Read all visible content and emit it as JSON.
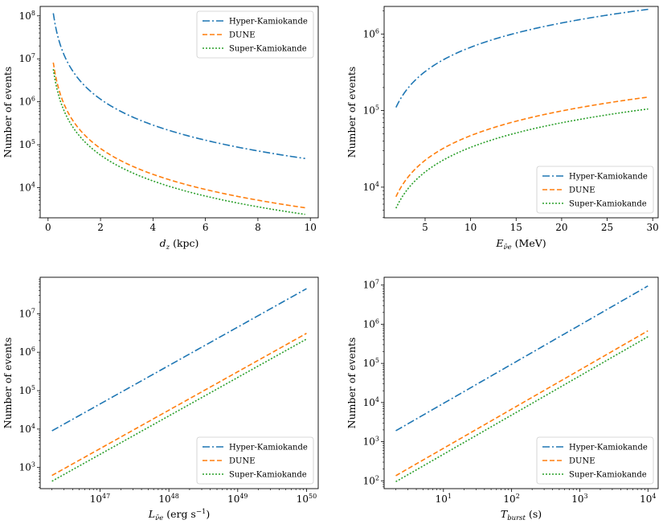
{
  "series_styles": [
    {
      "name": "Hyper-Kamiokande",
      "color": "#1f77b4",
      "dash": "9,3,2,3"
    },
    {
      "name": "DUNE",
      "color": "#ff7f0e",
      "dash": "6,3"
    },
    {
      "name": "Super-Kamiokande",
      "color": "#2ca02c",
      "dash": "2,2"
    }
  ],
  "chart_data": [
    {
      "type": "line",
      "xscale": "linear",
      "yscale": "log",
      "xlabel_main": "d",
      "xlabel_sub": "z",
      "xlabel_tail": " (kpc)",
      "ylabel": "Number of events",
      "xlim": [
        -0.3,
        10.3
      ],
      "ylim_exp": [
        3.3,
        8.22
      ],
      "xticks": [
        0,
        2,
        4,
        6,
        8,
        10
      ],
      "xtick_labels": [
        "0",
        "2",
        "4",
        "6",
        "8",
        "10"
      ],
      "yticks_exp": [
        4,
        5,
        6,
        7,
        8
      ],
      "ytick_labels": [
        {
          "base": "10",
          "exp": "4"
        },
        {
          "base": "10",
          "exp": "5"
        },
        {
          "base": "10",
          "exp": "6"
        },
        {
          "base": "10",
          "exp": "7"
        },
        {
          "base": "10",
          "exp": "8"
        }
      ],
      "legend": "top-right",
      "series": [
        {
          "name": "Hyper-Kamiokande",
          "model": "inverse_square",
          "x_start": 0.2,
          "x_end": 9.8,
          "y_start": 110000000,
          "y_end": 50000
        },
        {
          "name": "DUNE",
          "model": "inverse_square",
          "x_start": 0.2,
          "x_end": 9.8,
          "y_start": 8000000,
          "y_end": 3500
        },
        {
          "name": "Super-Kamiokande",
          "model": "inverse_square",
          "x_start": 0.2,
          "x_end": 9.8,
          "y_start": 5500000,
          "y_end": 2500
        }
      ]
    },
    {
      "type": "line",
      "xscale": "linear",
      "yscale": "log",
      "xlabel_main": "E",
      "xlabel_sub": "ν̄e",
      "xlabel_tail": " (MeV)",
      "ylabel": "Number of events",
      "xlim": [
        0.5,
        30.6
      ],
      "ylim_exp": [
        3.6,
        6.36
      ],
      "xticks": [
        5,
        10,
        15,
        20,
        25,
        30
      ],
      "xtick_labels": [
        "5",
        "10",
        "15",
        "20",
        "25",
        "30"
      ],
      "yticks_exp": [
        4,
        5,
        6
      ],
      "ytick_labels": [
        {
          "base": "10",
          "exp": "4"
        },
        {
          "base": "10",
          "exp": "5"
        },
        {
          "base": "10",
          "exp": "6"
        }
      ],
      "legend": "bottom-right",
      "series": [
        {
          "name": "Hyper-Kamiokande",
          "model": "power",
          "x_start": 1.8,
          "x_end": 29.5,
          "y_start": 110000,
          "y_end": 2100000
        },
        {
          "name": "DUNE",
          "model": "power",
          "x_start": 1.8,
          "x_end": 29.5,
          "y_start": 7500,
          "y_end": 150000
        },
        {
          "name": "Super-Kamiokande",
          "model": "power",
          "x_start": 1.8,
          "x_end": 29.5,
          "y_start": 5300,
          "y_end": 105000
        }
      ]
    },
    {
      "type": "line",
      "xscale": "log",
      "yscale": "log",
      "xlabel_main": "L",
      "xlabel_sub": "ν̄e",
      "xlabel_tail": " (erg s",
      "xlabel_sup": "−1",
      "xlabel_close": ")",
      "ylabel": "Number of events",
      "xlim_exp": [
        46.13,
        50.17
      ],
      "ylim_exp": [
        2.45,
        7.95
      ],
      "xticks_exp": [
        47,
        48,
        49,
        50
      ],
      "xtick_labels": [
        {
          "base": "10",
          "exp": "47"
        },
        {
          "base": "10",
          "exp": "48"
        },
        {
          "base": "10",
          "exp": "49"
        },
        {
          "base": "10",
          "exp": "50"
        }
      ],
      "yticks_exp": [
        3,
        4,
        5,
        6,
        7
      ],
      "ytick_labels": [
        {
          "base": "10",
          "exp": "3"
        },
        {
          "base": "10",
          "exp": "4"
        },
        {
          "base": "10",
          "exp": "5"
        },
        {
          "base": "10",
          "exp": "6"
        },
        {
          "base": "10",
          "exp": "7"
        }
      ],
      "legend": "bottom-right",
      "series": [
        {
          "name": "Hyper-Kamiokande",
          "model": "power",
          "x_start": 2e+46,
          "x_end": 1e+50,
          "y_start": 9000,
          "y_end": 45000000
        },
        {
          "name": "DUNE",
          "model": "power",
          "x_start": 2e+46,
          "x_end": 1e+50,
          "y_start": 620,
          "y_end": 3100000
        },
        {
          "name": "Super-Kamiokande",
          "model": "power",
          "x_start": 2e+46,
          "x_end": 1e+50,
          "y_start": 440,
          "y_end": 2200000
        }
      ]
    },
    {
      "type": "line",
      "xscale": "log",
      "yscale": "log",
      "xlabel_main": "T",
      "xlabel_sub": "burst",
      "xlabel_tail": " (s)",
      "ylabel": "Number of events",
      "xlim_exp": [
        0.13,
        4.15
      ],
      "ylim_exp": [
        1.8,
        7.2
      ],
      "xticks_exp": [
        1,
        2,
        3,
        4
      ],
      "xtick_labels": [
        {
          "base": "10",
          "exp": "1"
        },
        {
          "base": "10",
          "exp": "2"
        },
        {
          "base": "10",
          "exp": "3"
        },
        {
          "base": "10",
          "exp": "4"
        }
      ],
      "yticks_exp": [
        2,
        3,
        4,
        5,
        6,
        7
      ],
      "ytick_labels": [
        {
          "base": "10",
          "exp": "2"
        },
        {
          "base": "10",
          "exp": "3"
        },
        {
          "base": "10",
          "exp": "4"
        },
        {
          "base": "10",
          "exp": "5"
        },
        {
          "base": "10",
          "exp": "6"
        },
        {
          "base": "10",
          "exp": "7"
        }
      ],
      "legend": "bottom-right",
      "series": [
        {
          "name": "Hyper-Kamiokande",
          "model": "power",
          "x_start": 2,
          "x_end": 10000,
          "y_start": 1900,
          "y_end": 9500000
        },
        {
          "name": "DUNE",
          "model": "power",
          "x_start": 2,
          "x_end": 10000,
          "y_start": 135,
          "y_end": 680000
        },
        {
          "name": "Super-Kamiokande",
          "model": "power",
          "x_start": 2,
          "x_end": 10000,
          "y_start": 95,
          "y_end": 480000
        }
      ]
    }
  ]
}
